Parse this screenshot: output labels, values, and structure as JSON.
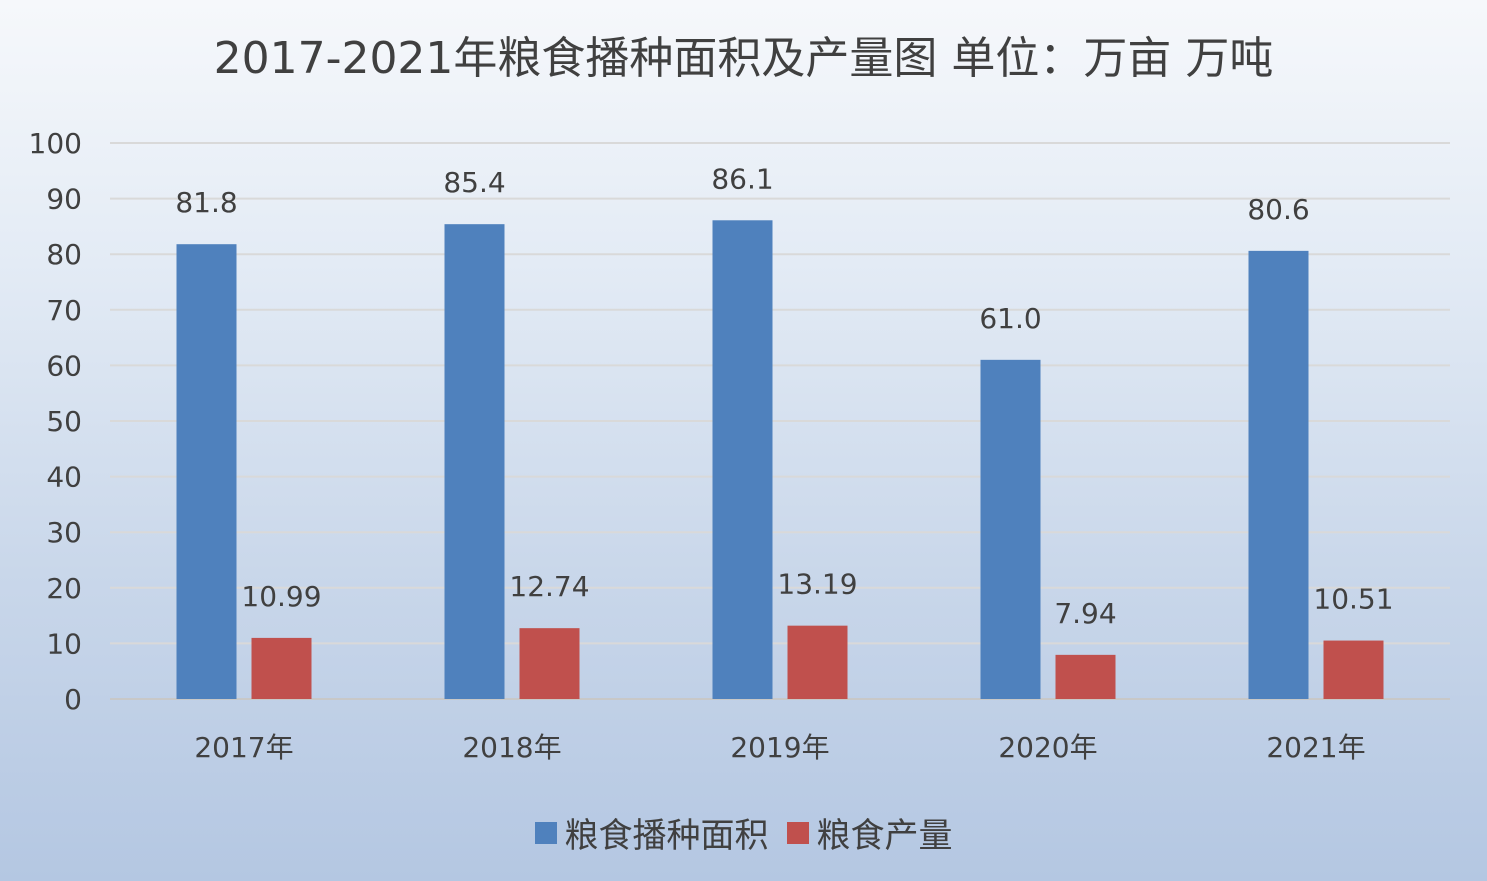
{
  "chart_data": {
    "type": "bar",
    "title": "2017-2021年粮食播种面积及产量图 单位：万亩 万吨",
    "categories": [
      "2017年",
      "2018年",
      "2019年",
      "2020年",
      "2021年"
    ],
    "series": [
      {
        "name": "粮食播种面积",
        "values": [
          81.8,
          85.4,
          86.1,
          61.0,
          80.6
        ],
        "labels": [
          "81.8",
          "85.4",
          "86.1",
          "61.0",
          "80.6"
        ],
        "color": "#4f81bd"
      },
      {
        "name": "粮食产量",
        "values": [
          10.99,
          12.74,
          13.19,
          7.94,
          10.51
        ],
        "labels": [
          "10.99",
          "12.74",
          "13.19",
          "7.94",
          "10.51"
        ],
        "color": "#c0504d"
      }
    ],
    "ylim": [
      0,
      100
    ],
    "yticks": [
      "0",
      "10",
      "20",
      "30",
      "40",
      "50",
      "60",
      "70",
      "80",
      "90",
      "100"
    ],
    "xlabel": "",
    "ylabel": "",
    "grid": true,
    "legend_position": "bottom"
  }
}
